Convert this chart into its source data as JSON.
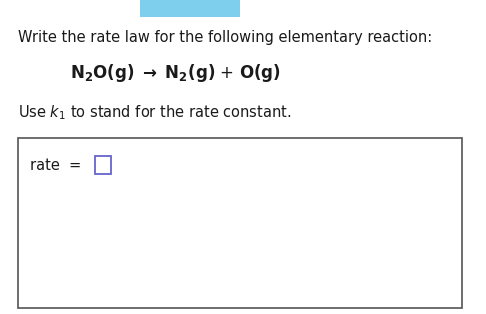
{
  "background_color": "#ffffff",
  "line1_text": "Write the rate law for the following elementary reaction:",
  "line1_fontsize": 10.5,
  "line1_color": "#1a1a1a",
  "reaction_fontsize": 12,
  "use_k_fontsize": 10.5,
  "rate_fontsize": 10.5,
  "box_edge_color": "#555555",
  "input_box_color": "#6666cc",
  "text_color": "#1a1a1a",
  "top_bar_color": "#7ecfed",
  "top_bar_height": 0.055
}
